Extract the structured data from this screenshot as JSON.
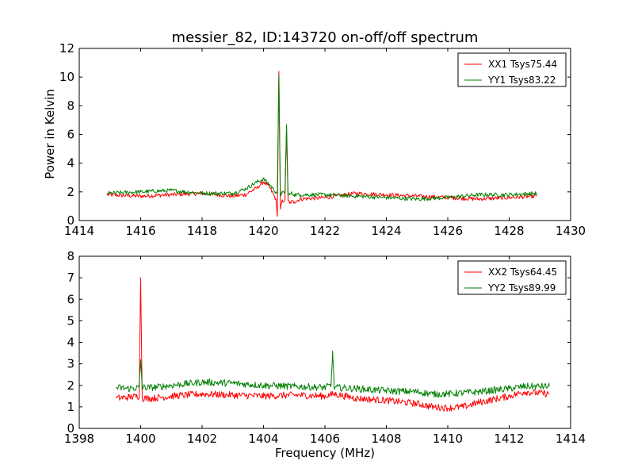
{
  "chart_data": [
    {
      "type": "line",
      "title": "messier_82, ID:143720 on-off/off spectrum",
      "xlabel": "",
      "ylabel": "Power in Kelvin",
      "xlim": [
        1414,
        1430
      ],
      "ylim": [
        0,
        12
      ],
      "xticks": [
        1414,
        1416,
        1418,
        1420,
        1422,
        1424,
        1426,
        1428,
        1430
      ],
      "yticks": [
        0,
        2,
        4,
        6,
        8,
        10,
        12
      ],
      "legend": "top-right",
      "series": [
        {
          "name": "XX1 Tsys75.44",
          "color": "#ff0000",
          "x": [
            1414.9,
            1416,
            1417,
            1418,
            1419,
            1419.4,
            1419.8,
            1420.0,
            1420.2,
            1420.4,
            1420.45,
            1420.5,
            1420.55,
            1420.6,
            1420.7,
            1420.75,
            1420.8,
            1420.85,
            1420.9,
            1421.0,
            1421.2,
            1422,
            1423,
            1424,
            1425,
            1426,
            1427,
            1428,
            1428.9
          ],
          "y": [
            1.8,
            1.7,
            1.8,
            1.9,
            1.7,
            1.8,
            2.3,
            2.7,
            2.3,
            1.5,
            0.3,
            10.4,
            0.8,
            1.3,
            1.5,
            6.4,
            1.4,
            1.2,
            1.3,
            1.3,
            1.5,
            1.6,
            1.9,
            1.8,
            1.7,
            1.6,
            1.5,
            1.6,
            1.7
          ]
        },
        {
          "name": "YY1 Tsys83.22",
          "color": "#007f00",
          "x": [
            1414.9,
            1416,
            1417,
            1418,
            1419,
            1419.4,
            1419.8,
            1420.0,
            1420.2,
            1420.4,
            1420.45,
            1420.5,
            1420.55,
            1420.6,
            1420.7,
            1420.75,
            1420.8,
            1420.85,
            1420.9,
            1421.0,
            1421.2,
            1422,
            1423,
            1424,
            1425,
            1426,
            1427,
            1428,
            1428.9
          ],
          "y": [
            1.9,
            2.0,
            2.1,
            1.9,
            1.9,
            2.2,
            2.7,
            2.9,
            2.5,
            2.0,
            1.9,
            10.1,
            1.8,
            1.9,
            2.0,
            6.7,
            1.8,
            1.8,
            1.9,
            1.8,
            1.8,
            1.8,
            1.7,
            1.6,
            1.5,
            1.6,
            1.8,
            1.8,
            1.9
          ]
        }
      ]
    },
    {
      "type": "line",
      "title": "",
      "xlabel": "Frequency (MHz)",
      "ylabel": "",
      "xlim": [
        1398,
        1414
      ],
      "ylim": [
        0,
        8
      ],
      "xticks": [
        1398,
        1400,
        1402,
        1404,
        1406,
        1408,
        1410,
        1412,
        1414
      ],
      "yticks": [
        0,
        1,
        2,
        3,
        4,
        5,
        6,
        7,
        8
      ],
      "legend": "top-right",
      "series": [
        {
          "name": "XX2 Tsys64.45",
          "color": "#ff0000",
          "x": [
            1399.2,
            1399.6,
            1399.95,
            1400.0,
            1400.05,
            1400.4,
            1401,
            1402,
            1403,
            1404,
            1405,
            1406,
            1406.3,
            1407,
            1408,
            1409,
            1409.5,
            1410,
            1410.5,
            1411,
            1412,
            1412.5,
            1413.3
          ],
          "y": [
            1.4,
            1.45,
            1.5,
            7.0,
            1.4,
            1.4,
            1.5,
            1.6,
            1.55,
            1.5,
            1.55,
            1.5,
            1.6,
            1.4,
            1.3,
            1.15,
            1.0,
            0.95,
            1.0,
            1.2,
            1.5,
            1.7,
            1.6
          ]
        },
        {
          "name": "YY2 Tsys89.99",
          "color": "#007f00",
          "x": [
            1399.2,
            1399.6,
            1399.95,
            1400.0,
            1400.05,
            1400.4,
            1401,
            1402,
            1403,
            1404,
            1405,
            1406,
            1406.2,
            1406.25,
            1406.3,
            1407,
            1408,
            1409,
            1409.5,
            1410,
            1410.5,
            1411,
            1412,
            1412.5,
            1413.3
          ],
          "y": [
            1.9,
            1.85,
            1.9,
            3.2,
            1.9,
            1.9,
            2.0,
            2.15,
            2.1,
            2.0,
            1.95,
            1.9,
            2.0,
            3.6,
            1.9,
            1.85,
            1.75,
            1.7,
            1.6,
            1.6,
            1.65,
            1.7,
            1.85,
            1.95,
            1.95
          ]
        }
      ]
    }
  ]
}
